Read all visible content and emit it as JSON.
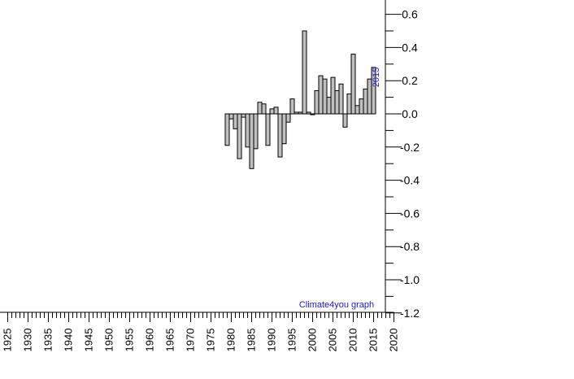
{
  "chart_data": {
    "type": "bar",
    "title": "",
    "xlabel": "",
    "ylabel": "",
    "xlim": [
      1925,
      2020
    ],
    "ylim": [
      -1.2,
      0.7
    ],
    "y_axis_position": "right",
    "x_ticks": [
      1925,
      1930,
      1935,
      1940,
      1945,
      1950,
      1955,
      1960,
      1965,
      1970,
      1975,
      1980,
      1985,
      1990,
      1995,
      2000,
      2005,
      2010,
      2015,
      2020
    ],
    "x_tick_labels": [
      "1925",
      "1930",
      "1935",
      "1940",
      "1945",
      "1950",
      "1955",
      "1960",
      "1965",
      "1970",
      "1975",
      "1980",
      "1985",
      "1990",
      "1995",
      "2000",
      "2005",
      "2010",
      "2015",
      "2020"
    ],
    "y_ticks": [
      0.6,
      0.4,
      0.2,
      0.0,
      -0.2,
      -0.4,
      -0.6,
      -0.8,
      -1.0,
      -1.2
    ],
    "y_tick_labels": [
      "0.6",
      "0.4",
      "0.2",
      "0.0",
      "-0.2",
      "-0.4",
      "-0.6",
      "-0.8",
      "-1.0",
      "-1.2"
    ],
    "grid": false,
    "bar_color": "#c0c0c0",
    "bar_edge_color": "#000000",
    "series": [
      {
        "x": [
          1979,
          1980,
          1981,
          1982,
          1983,
          1984,
          1985,
          1986,
          1987,
          1988,
          1989,
          1990,
          1991,
          1992,
          1993,
          1994,
          1995,
          1996,
          1997,
          1998,
          1999,
          2000,
          2001,
          2002,
          2003,
          2004,
          2005,
          2006,
          2007,
          2008,
          2009,
          2010,
          2011,
          2012,
          2013,
          2014,
          2015
        ],
        "values": [
          -0.19,
          -0.03,
          -0.09,
          -0.27,
          -0.02,
          -0.2,
          -0.33,
          -0.21,
          0.07,
          0.06,
          -0.19,
          0.03,
          0.04,
          -0.26,
          -0.18,
          -0.05,
          0.09,
          0.01,
          0.01,
          0.5,
          0.01,
          0.0,
          0.14,
          0.23,
          0.21,
          0.1,
          0.22,
          0.14,
          0.18,
          -0.08,
          0.12,
          0.36,
          0.05,
          0.09,
          0.15,
          0.21,
          0.28
        ]
      }
    ],
    "annotations": [
      {
        "text": "2015",
        "color": "#1a1acc"
      },
      {
        "text": "Climate4you graph",
        "color": "#1a1acc"
      }
    ]
  }
}
